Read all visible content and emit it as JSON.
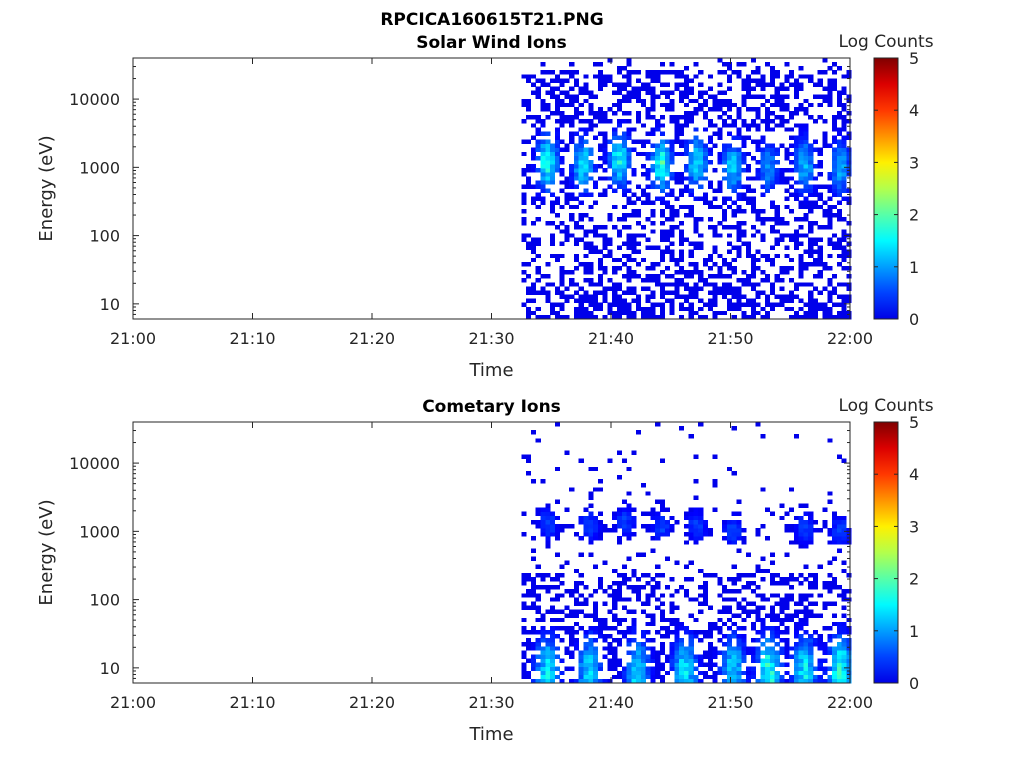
{
  "figure_title": "RPCICA160615T21.PNG",
  "chart_data": [
    {
      "type": "heatmap",
      "title": "Solar Wind Ions",
      "xlabel": "Time",
      "ylabel": "Energy (eV)",
      "x_ticks": [
        "21:00",
        "21:10",
        "21:20",
        "21:30",
        "21:40",
        "21:50",
        "22:00"
      ],
      "xlim": [
        "21:00",
        "22:00"
      ],
      "yscale": "log",
      "y_ticks": [
        10,
        100,
        1000,
        10000
      ],
      "y_tick_labels": [
        "10",
        "100",
        "1000",
        "10000"
      ],
      "ylim": [
        6,
        40000
      ],
      "data_start": "21:32.5",
      "colorbar": {
        "label": "Log Counts",
        "range": [
          0,
          5
        ],
        "ticks": [
          "0",
          "1",
          "2",
          "3",
          "4",
          "5"
        ],
        "colormap": "jet"
      },
      "features": [
        {
          "kind": "burst",
          "time": "21:34.5",
          "energy": 1200,
          "peak": 1.6
        },
        {
          "kind": "burst",
          "time": "21:37.5",
          "energy": 1100,
          "peak": 1.3
        },
        {
          "kind": "burst",
          "time": "21:40.5",
          "energy": 1300,
          "peak": 1.5
        },
        {
          "kind": "burst",
          "time": "21:44",
          "energy": 1100,
          "peak": 1.6
        },
        {
          "kind": "burst",
          "time": "21:47",
          "energy": 1200,
          "peak": 1.3
        },
        {
          "kind": "burst",
          "time": "21:50",
          "energy": 1000,
          "peak": 1.2
        },
        {
          "kind": "burst",
          "time": "21:53",
          "energy": 1000,
          "peak": 0.9
        },
        {
          "kind": "burst",
          "time": "21:56",
          "energy": 1100,
          "peak": 1.1
        },
        {
          "kind": "burst",
          "time": "21:59",
          "energy": 1000,
          "peak": 1.0
        }
      ]
    },
    {
      "type": "heatmap",
      "title": "Cometary Ions",
      "xlabel": "Time",
      "ylabel": "Energy (eV)",
      "x_ticks": [
        "21:00",
        "21:10",
        "21:20",
        "21:30",
        "21:40",
        "21:50",
        "22:00"
      ],
      "xlim": [
        "21:00",
        "22:00"
      ],
      "yscale": "log",
      "y_ticks": [
        10,
        100,
        1000,
        10000
      ],
      "y_tick_labels": [
        "10",
        "100",
        "1000",
        "10000"
      ],
      "ylim": [
        6,
        40000
      ],
      "data_start": "21:32.5",
      "colorbar": {
        "label": "Log Counts",
        "range": [
          0,
          5
        ],
        "ticks": [
          "0",
          "1",
          "2",
          "3",
          "4",
          "5"
        ],
        "colormap": "jet"
      },
      "features": [
        {
          "kind": "burst",
          "time": "21:34.5",
          "energy": 1300,
          "peak": 0.5
        },
        {
          "kind": "burst",
          "time": "21:38",
          "energy": 1200,
          "peak": 0.5
        },
        {
          "kind": "burst",
          "time": "21:41",
          "energy": 1400,
          "peak": 0.5
        },
        {
          "kind": "burst",
          "time": "21:44",
          "energy": 1200,
          "peak": 0.5
        },
        {
          "kind": "burst",
          "time": "21:47",
          "energy": 1200,
          "peak": 0.5
        },
        {
          "kind": "burst",
          "time": "21:50",
          "energy": 1000,
          "peak": 0.5
        },
        {
          "kind": "burst",
          "time": "21:56",
          "energy": 1100,
          "peak": 0.5
        },
        {
          "kind": "burst",
          "time": "21:59",
          "energy": 1000,
          "peak": 0.5
        },
        {
          "kind": "low-energy",
          "time": "21:34.5",
          "energy": 10,
          "peak": 1.3
        },
        {
          "kind": "low-energy",
          "time": "21:38",
          "energy": 10,
          "peak": 1.2
        },
        {
          "kind": "low-energy",
          "time": "21:42",
          "energy": 10,
          "peak": 1.2
        },
        {
          "kind": "low-energy",
          "time": "21:46",
          "energy": 10,
          "peak": 1.3
        },
        {
          "kind": "low-energy",
          "time": "21:50",
          "energy": 10,
          "peak": 1.2
        },
        {
          "kind": "low-energy",
          "time": "21:53",
          "energy": 10,
          "peak": 1.5
        },
        {
          "kind": "low-energy",
          "time": "21:56",
          "energy": 10,
          "peak": 1.3
        },
        {
          "kind": "low-energy",
          "time": "21:59",
          "energy": 10,
          "peak": 1.5
        }
      ]
    }
  ]
}
